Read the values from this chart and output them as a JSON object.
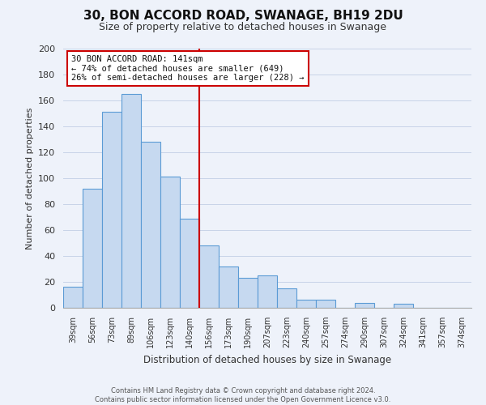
{
  "title": "30, BON ACCORD ROAD, SWANAGE, BH19 2DU",
  "subtitle": "Size of property relative to detached houses in Swanage",
  "xlabel": "Distribution of detached houses by size in Swanage",
  "ylabel": "Number of detached properties",
  "bar_labels": [
    "39sqm",
    "56sqm",
    "73sqm",
    "89sqm",
    "106sqm",
    "123sqm",
    "140sqm",
    "156sqm",
    "173sqm",
    "190sqm",
    "207sqm",
    "223sqm",
    "240sqm",
    "257sqm",
    "274sqm",
    "290sqm",
    "307sqm",
    "324sqm",
    "341sqm",
    "357sqm",
    "374sqm"
  ],
  "bar_values": [
    16,
    92,
    151,
    165,
    128,
    101,
    69,
    48,
    32,
    23,
    25,
    15,
    6,
    6,
    0,
    4,
    0,
    3,
    0,
    0,
    0
  ],
  "bar_color": "#c6d9f0",
  "bar_edge_color": "#5b9bd5",
  "highlight_index": 6,
  "highlight_line_color": "#cc0000",
  "annotation_title": "30 BON ACCORD ROAD: 141sqm",
  "annotation_line1": "← 74% of detached houses are smaller (649)",
  "annotation_line2": "26% of semi-detached houses are larger (228) →",
  "annotation_box_color": "#ffffff",
  "annotation_box_edge_color": "#cc0000",
  "ylim": [
    0,
    200
  ],
  "yticks": [
    0,
    20,
    40,
    60,
    80,
    100,
    120,
    140,
    160,
    180,
    200
  ],
  "footer_line1": "Contains HM Land Registry data © Crown copyright and database right 2024.",
  "footer_line2": "Contains public sector information licensed under the Open Government Licence v3.0.",
  "bg_color": "#eef2fa",
  "grid_color": "#c8d4e8",
  "title_fontsize": 11,
  "subtitle_fontsize": 9
}
